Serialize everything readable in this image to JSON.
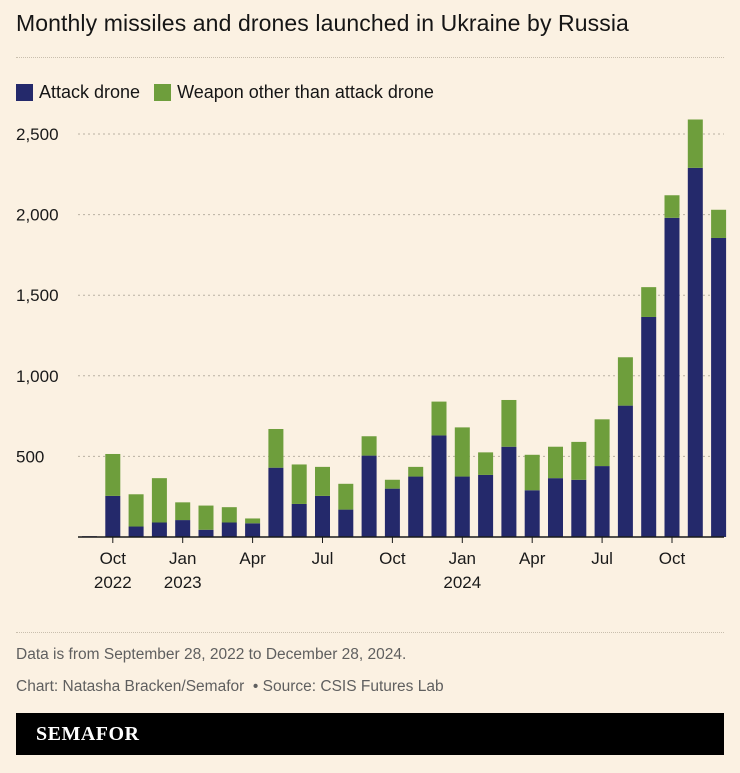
{
  "title": "Monthly missiles and drones launched in Ukraine by Russia",
  "colors": {
    "attack_drone": "#24296b",
    "other_weapon": "#6e9e3c",
    "background": "#fbf1e2"
  },
  "chart_data": {
    "type": "bar",
    "stacked": true,
    "categories": [
      "2022-09",
      "2022-10",
      "2022-11",
      "2022-12",
      "2023-01",
      "2023-02",
      "2023-03",
      "2023-04",
      "2023-05",
      "2023-06",
      "2023-07",
      "2023-08",
      "2023-09",
      "2023-10",
      "2023-11",
      "2023-12",
      "2024-01",
      "2024-02",
      "2024-03",
      "2024-04",
      "2024-05",
      "2024-06",
      "2024-07",
      "2024-08",
      "2024-09",
      "2024-10",
      "2024-11",
      "2024-12"
    ],
    "series": [
      {
        "name": "Attack drone",
        "values": [
          5,
          255,
          65,
          90,
          105,
          45,
          90,
          85,
          430,
          205,
          255,
          170,
          505,
          300,
          375,
          630,
          375,
          385,
          560,
          290,
          365,
          355,
          440,
          815,
          1365,
          1980,
          2290,
          1855
        ]
      },
      {
        "name": "Weapon other than attack drone",
        "values": [
          0,
          260,
          200,
          275,
          110,
          150,
          95,
          30,
          240,
          245,
          180,
          160,
          120,
          55,
          60,
          210,
          305,
          140,
          290,
          220,
          195,
          235,
          290,
          300,
          185,
          140,
          300,
          175
        ]
      }
    ],
    "y_ticks": [
      "500",
      "1,000",
      "1,500",
      "2,000",
      "2,500"
    ],
    "y_tick_values": [
      500,
      1000,
      1500,
      2000,
      2500
    ],
    "ylim": [
      0,
      2650
    ],
    "x_ticks": [
      {
        "index": 1,
        "label": "Oct",
        "year": "2022"
      },
      {
        "index": 4,
        "label": "Jan",
        "year": "2023"
      },
      {
        "index": 7,
        "label": "Apr",
        "year": ""
      },
      {
        "index": 10,
        "label": "Jul",
        "year": ""
      },
      {
        "index": 13,
        "label": "Oct",
        "year": ""
      },
      {
        "index": 16,
        "label": "Jan",
        "year": "2024"
      },
      {
        "index": 19,
        "label": "Apr",
        "year": ""
      },
      {
        "index": 22,
        "label": "Jul",
        "year": ""
      },
      {
        "index": 25,
        "label": "Oct",
        "year": ""
      }
    ],
    "grid": true,
    "legend_position": "top-left"
  },
  "footnote": "Data is from September 28, 2022 to December 28, 2024.",
  "credit": "Chart: Natasha Bracken/Semafor",
  "source": "Source: CSIS Futures Lab",
  "brand": "SEMAFOR"
}
